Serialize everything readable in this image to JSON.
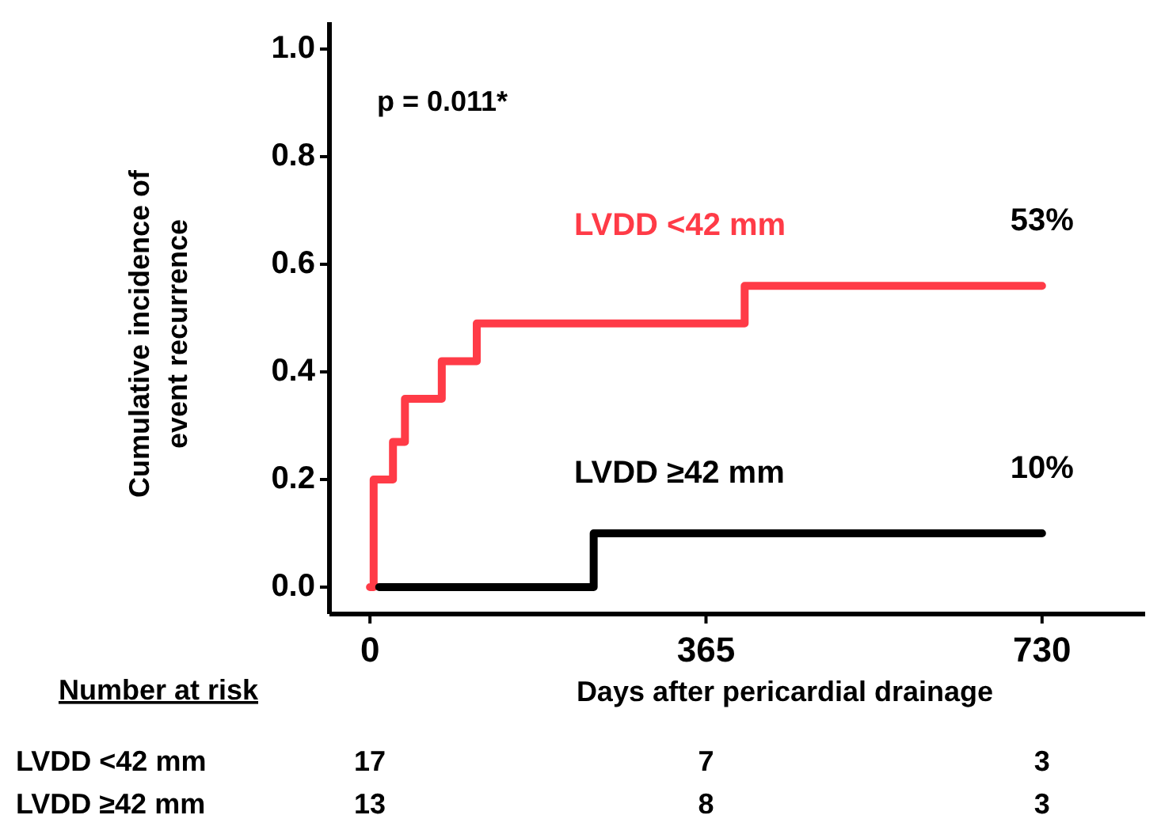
{
  "chart_data": {
    "type": "step",
    "ylabel": "Cumulative incidence of event recurrence",
    "xlabel": "Days after pericardial drainage",
    "xlim": [
      -44,
      842
    ],
    "xticks": [
      0,
      365,
      730
    ],
    "ylim": [
      -0.05,
      1.05
    ],
    "yticks": [
      {
        "value": 0,
        "label": "0.0"
      },
      {
        "value": 0.2,
        "label": "0.2"
      },
      {
        "value": 0.4,
        "label": "0.4"
      },
      {
        "value": 0.6,
        "label": "0.6"
      },
      {
        "value": 0.8,
        "label": "0.8"
      },
      {
        "value": 1,
        "label": "1.0"
      }
    ],
    "series": [
      {
        "name": "LVDD <42 mm",
        "color": "#ff3b47",
        "x": [
          0,
          4,
          25,
          38,
          78,
          116,
          407,
          730
        ],
        "values": [
          0,
          0.2,
          0.27,
          0.35,
          0.42,
          0.49,
          0.56,
          0.56
        ]
      },
      {
        "name": "LVDD ≥42 mm",
        "color": "#000000",
        "x": [
          10,
          243,
          730
        ],
        "values": [
          0,
          0.1,
          0.1
        ]
      }
    ],
    "annotations": [
      "p = 0.011*",
      {
        "text": "53%",
        "x": 730,
        "y": 0.56
      },
      {
        "text": "10%",
        "x": 730,
        "y": 0.1
      },
      "Number at risk",
      "17",
      "7",
      "3",
      "13",
      "8",
      "3"
    ],
    "grid": false
  }
}
